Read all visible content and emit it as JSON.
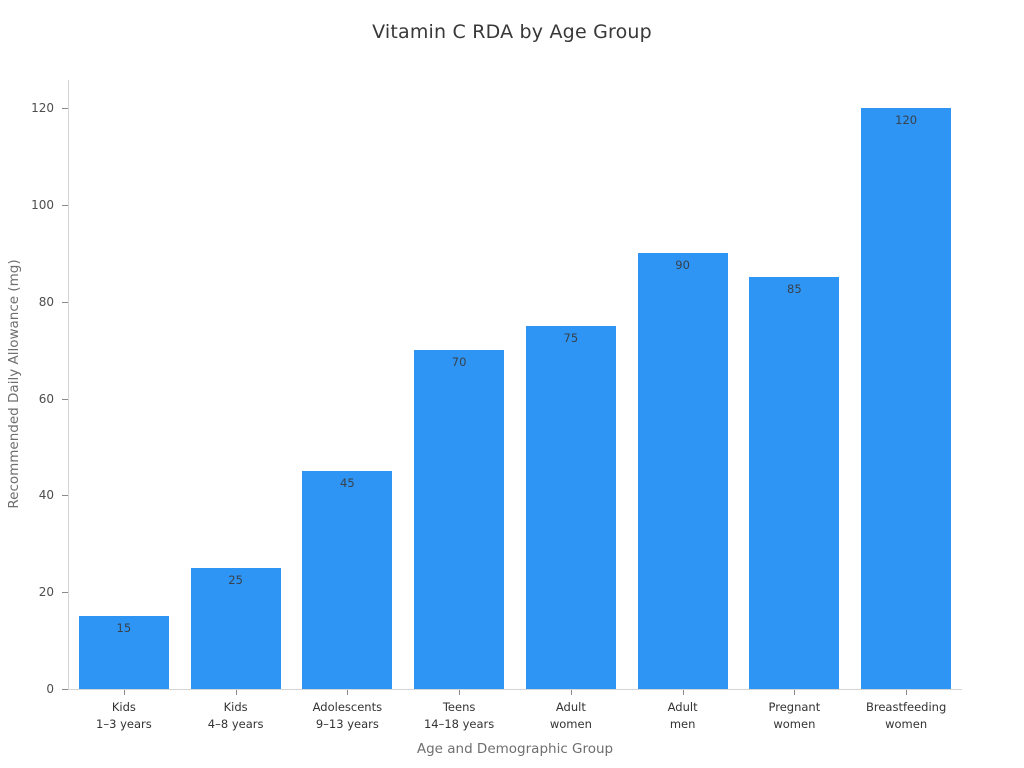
{
  "chart_data": {
    "type": "bar",
    "title": "Vitamin C RDA by Age Group",
    "xlabel": "Age and Demographic Group",
    "ylabel": "Recommended Daily Allowance (mg)",
    "categories": [
      "Kids\n1–3 years",
      "Kids\n4–8 years",
      "Adolescents\n9–13 years",
      "Teens\n14–18 years",
      "Adult\nwomen",
      "Adult\nmen",
      "Pregnant\nwomen",
      "Breastfeeding\nwomen"
    ],
    "values": [
      15,
      25,
      45,
      70,
      75,
      90,
      85,
      120
    ],
    "value_labels": [
      "15",
      "25",
      "45",
      "70",
      "75",
      "90",
      "85",
      "120"
    ],
    "yticks": [
      0,
      20,
      40,
      60,
      80,
      100,
      120
    ],
    "ylim": [
      0,
      126
    ],
    "grid": false,
    "legend": "none",
    "bar_color": "#2E95F4",
    "background": "#ffffff"
  }
}
